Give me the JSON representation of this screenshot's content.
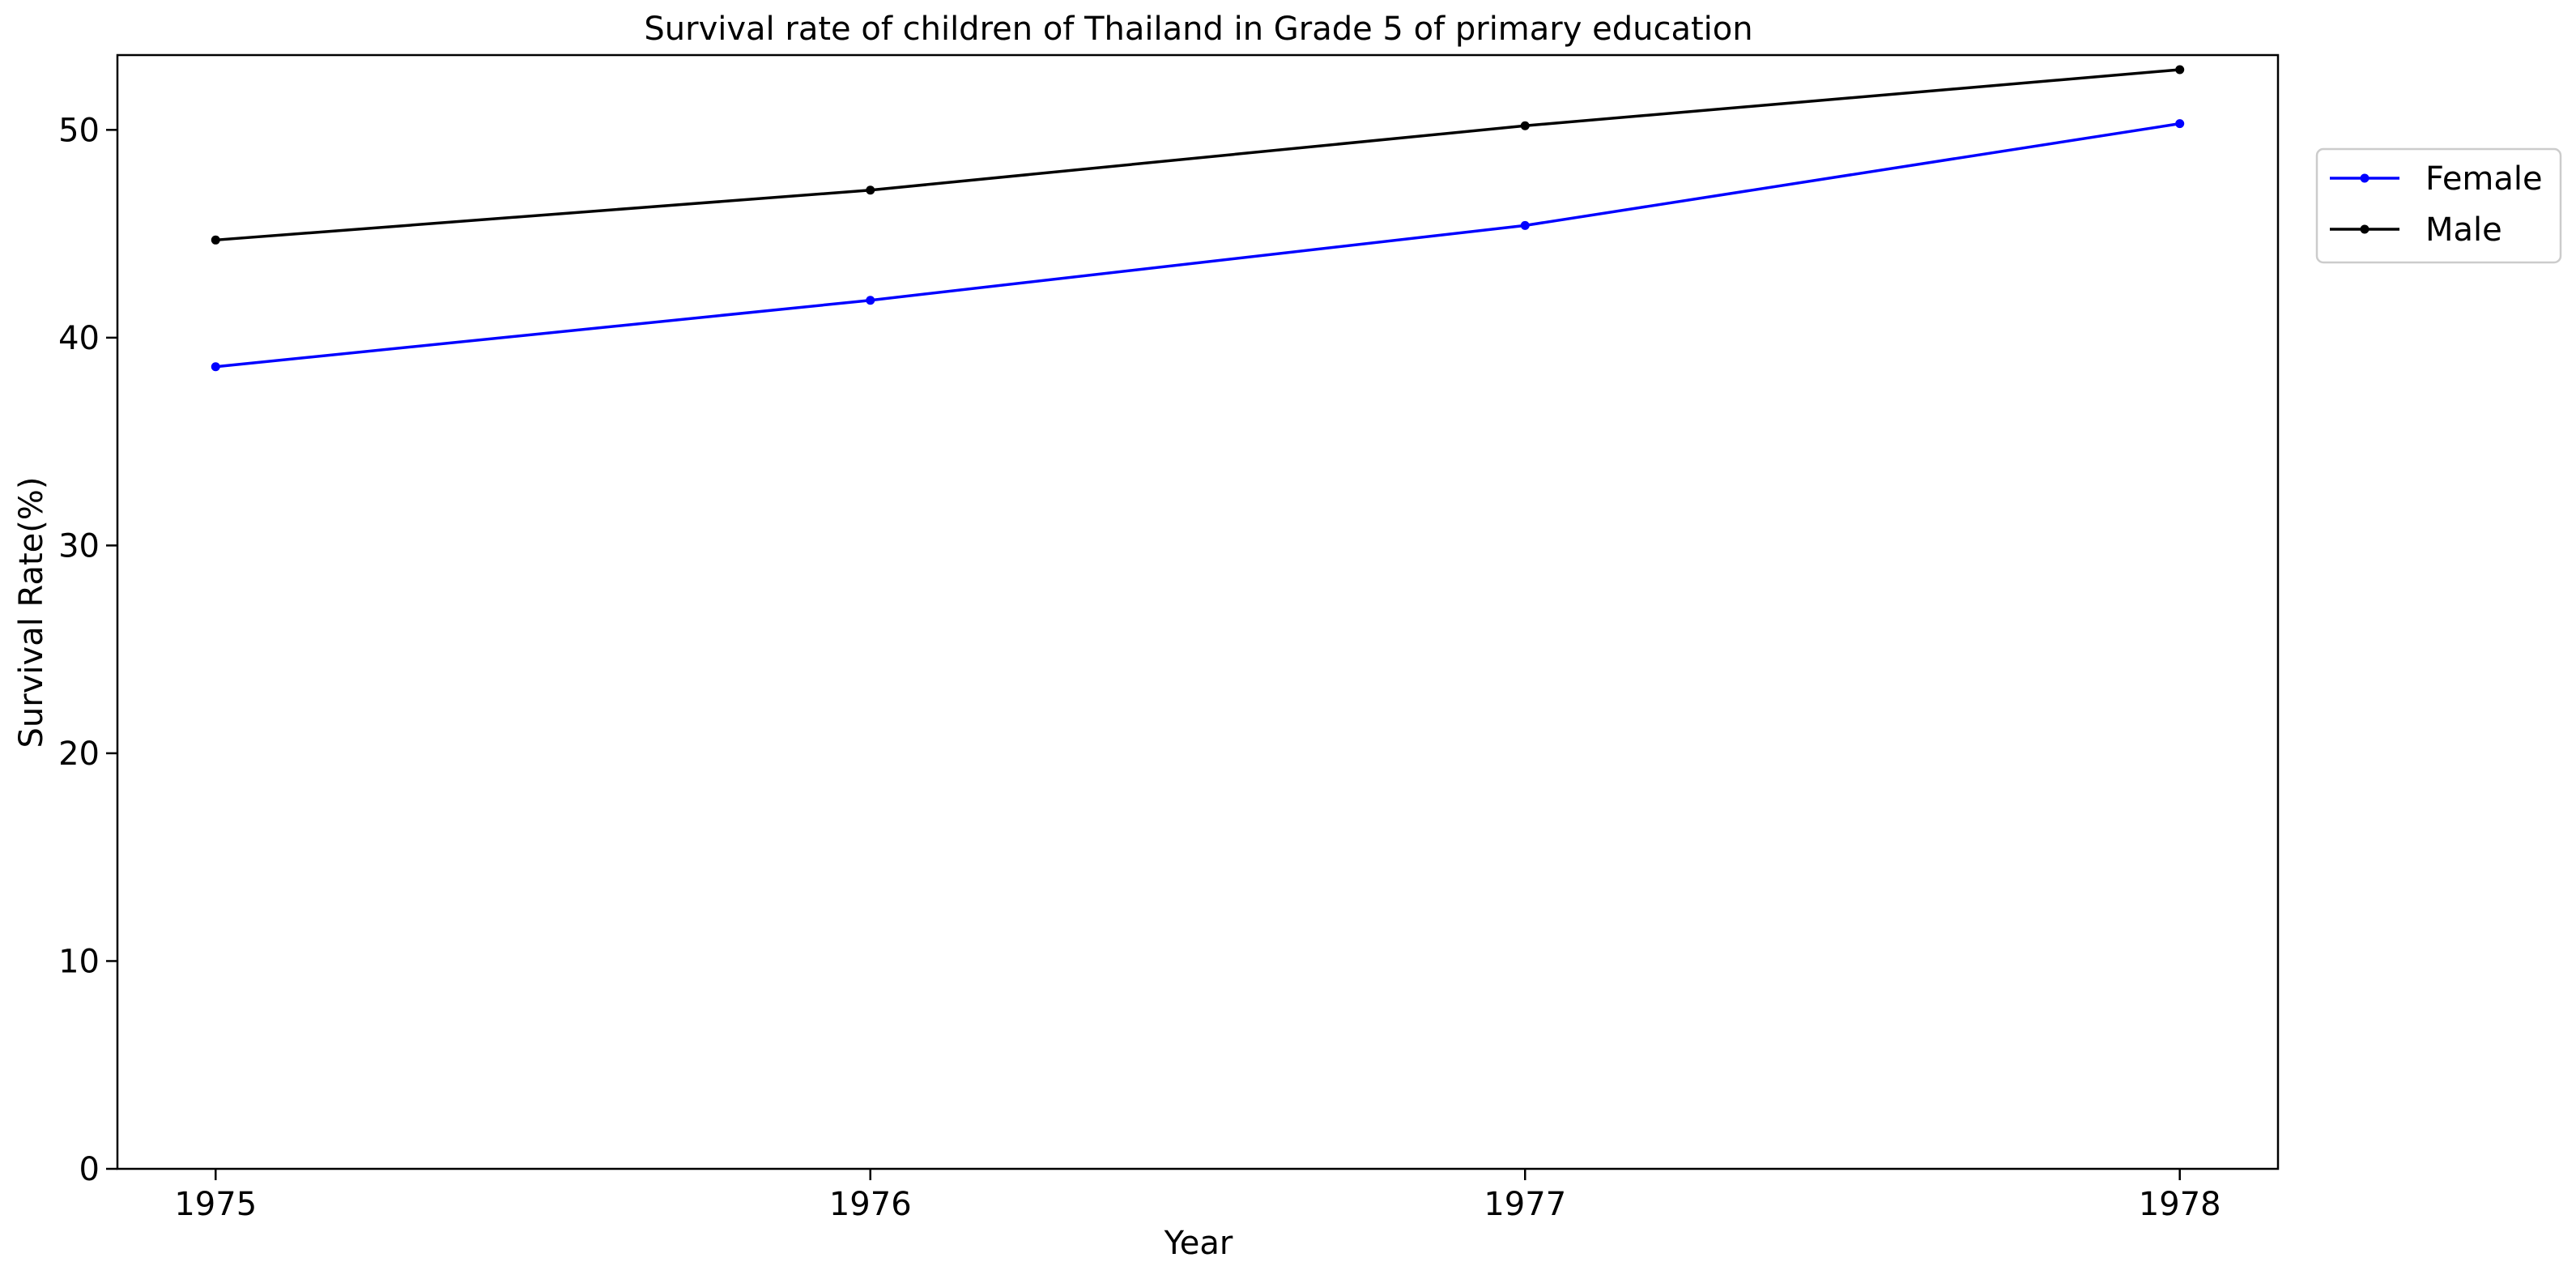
{
  "chart_data": {
    "type": "line",
    "title": "Survival rate of children of Thailand in Grade 5 of primary education",
    "xlabel": "Year",
    "ylabel": "Survival Rate(%)",
    "x": [
      1975,
      1976,
      1977,
      1978
    ],
    "x_tick_labels": [
      "1975",
      "1976",
      "1977",
      "1978"
    ],
    "y_ticks": [
      0,
      10,
      20,
      30,
      40,
      50
    ],
    "y_tick_labels": [
      "0",
      "10",
      "20",
      "30",
      "40",
      "50"
    ],
    "xlim": [
      1974.85,
      1978.15
    ],
    "ylim": [
      0,
      53.6
    ],
    "grid": false,
    "legend_position": "outside-top-right",
    "series": [
      {
        "name": "Female",
        "color": "#0000ff",
        "marker": "circle",
        "values": [
          38.6,
          41.8,
          45.4,
          50.3
        ]
      },
      {
        "name": "Male",
        "color": "#000000",
        "marker": "circle",
        "values": [
          44.7,
          47.1,
          50.2,
          52.9
        ]
      }
    ]
  }
}
